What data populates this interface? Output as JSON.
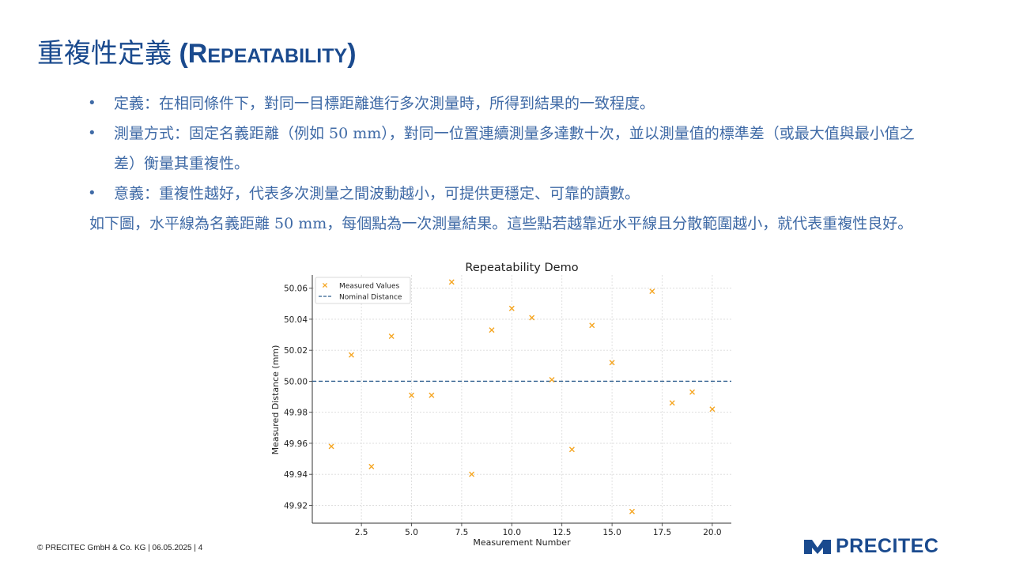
{
  "slide": {
    "title_cjk": "重複性定義",
    "title_open": " (",
    "title_R": "R",
    "title_rest": "EPEATABILITY",
    "title_close": ")",
    "bullet_symbol": "•",
    "bullets": [
      "定義：在相同條件下，對同一目標距離進行多次測量時，所得到結果的一致程度。",
      "測量方式：固定名義距離（例如 50 mm），對同一位置連續測量多達數十次，並以測量值的標準差（或最大值與最小值之差）衡量其重複性。",
      "意義：重複性越好，代表多次測量之間波動越小，可提供更穩定、可靠的讀數。"
    ],
    "paragraph": "如下圖，水平線為名義距離 50 mm，每個點為一次測量結果。這些點若越靠近水平線且分散範圍越小，就代表重複性良好。"
  },
  "footer": {
    "text": "© PRECITEC GmbH & Co. KG | 06.05.2025 | 4"
  },
  "logo": {
    "text": "PRECITEC",
    "icon": "precitec-logo-icon"
  },
  "chart_data": {
    "type": "scatter",
    "title": "Repeatability Demo",
    "xlabel": "Measurement Number",
    "ylabel": "Measured Distance (mm)",
    "xlim": [
      0.05,
      20.95
    ],
    "ylim": [
      49.9085,
      50.0685
    ],
    "xticks": [
      2.5,
      5.0,
      7.5,
      10.0,
      12.5,
      15.0,
      17.5,
      20.0
    ],
    "xtick_labels": [
      "2.5",
      "5.0",
      "7.5",
      "10.0",
      "12.5",
      "15.0",
      "17.5",
      "20.0"
    ],
    "yticks": [
      49.92,
      49.94,
      49.96,
      49.98,
      50.0,
      50.02,
      50.04,
      50.06
    ],
    "ytick_labels": [
      "49.92",
      "49.94",
      "49.96",
      "49.98",
      "50.00",
      "50.02",
      "50.04",
      "50.06"
    ],
    "grid": true,
    "legend_placement": "upper-left",
    "series": [
      {
        "name": "Measured Values",
        "marker": "x",
        "color": "#f5a623",
        "x": [
          1,
          2,
          3,
          4,
          5,
          6,
          7,
          8,
          9,
          10,
          11,
          12,
          13,
          14,
          15,
          16,
          17,
          18,
          19,
          20
        ],
        "y": [
          49.958,
          50.017,
          49.945,
          50.029,
          49.991,
          49.991,
          50.064,
          49.94,
          50.033,
          50.047,
          50.041,
          50.001,
          49.956,
          50.036,
          50.012,
          49.916,
          50.058,
          49.986,
          49.993,
          49.982
        ]
      }
    ],
    "reference_line": {
      "name": "Nominal Distance",
      "y": 50.0,
      "style": "dashed",
      "color": "#2f5f8f"
    }
  }
}
